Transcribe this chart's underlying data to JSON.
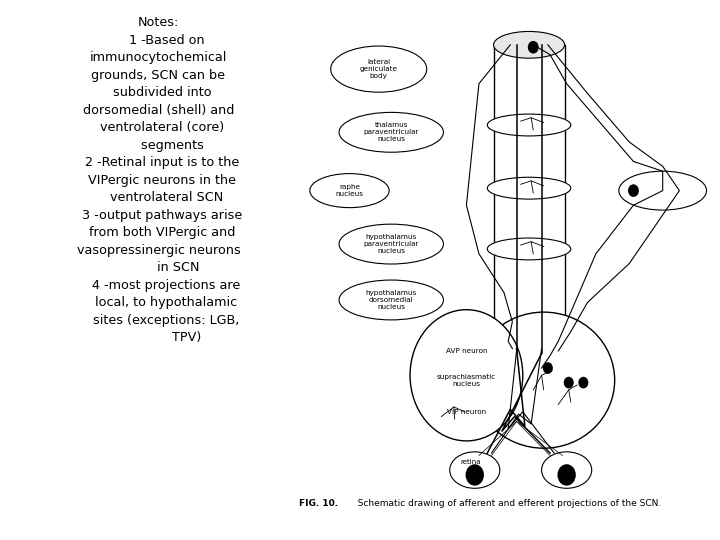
{
  "background_color": "#ffffff",
  "text_color": "#000000",
  "notes_lines": [
    "Notes:",
    "    1 -Based on",
    "immunocytochemical",
    "grounds, SCN can be",
    "  subdivided into",
    "dorsomedial (shell) and",
    "  ventrolateral (core)",
    "       segments",
    "  2 -Retinal input is to the",
    "  VIPergic neurons in the",
    "    ventrolateral SCN",
    "  3 -output pathways arise",
    "  from both VIPergic and",
    "vasopressinergic neurons",
    "          in SCN",
    "    4 -most projections are",
    "    local, to hypothalamic",
    "    sites (exceptions: LGB,",
    "              TPV)"
  ],
  "fig_caption_bold": "FIG. 10.",
  "fig_caption_rest": "   Schematic drawing of afferent and efferent projections of the SCN."
}
